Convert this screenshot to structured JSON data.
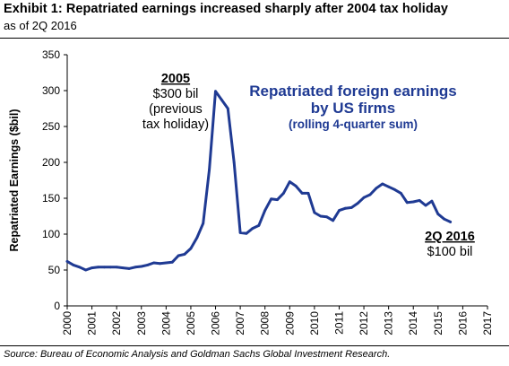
{
  "header": {
    "title": "Exhibit 1: Repatriated earnings increased sharply after 2004 tax holiday",
    "subtitle": "as of 2Q 2016"
  },
  "footer": {
    "source": "Source: Bureau of Economic Analysis and Goldman Sachs Global Investment Research."
  },
  "chart_data": {
    "type": "line",
    "title": "",
    "xlabel": "",
    "ylabel": "Repatriated Earnings ($bil)",
    "xlim": [
      2000,
      2017
    ],
    "ylim": [
      0,
      350
    ],
    "yticks": [
      0,
      50,
      100,
      150,
      200,
      250,
      300,
      350
    ],
    "xticks": [
      "2000",
      "2001",
      "2002",
      "2003",
      "2004",
      "2005",
      "2006",
      "2007",
      "2008",
      "2009",
      "2010",
      "2011",
      "2012",
      "2013",
      "2014",
      "2015",
      "2016",
      "2017"
    ],
    "grid": false,
    "series_color": "#1f3a93",
    "series": [
      {
        "name": "Repatriated foreign earnings by US firms",
        "x": [
          2000.0,
          2000.25,
          2000.5,
          2000.75,
          2001.0,
          2001.25,
          2001.5,
          2001.75,
          2002.0,
          2002.25,
          2002.5,
          2002.75,
          2003.0,
          2003.25,
          2003.5,
          2003.75,
          2004.0,
          2004.25,
          2004.5,
          2004.75,
          2005.0,
          2005.25,
          2005.5,
          2005.75,
          2006.0,
          2006.25,
          2006.5,
          2006.75,
          2007.0,
          2007.25,
          2007.5,
          2007.75,
          2008.0,
          2008.25,
          2008.5,
          2008.75,
          2009.0,
          2009.25,
          2009.5,
          2009.75,
          2010.0,
          2010.25,
          2010.5,
          2010.75,
          2011.0,
          2011.25,
          2011.5,
          2011.75,
          2012.0,
          2012.25,
          2012.5,
          2012.75,
          2013.0,
          2013.25,
          2013.5,
          2013.75,
          2014.0,
          2014.25,
          2014.5,
          2014.75,
          2015.0,
          2015.25,
          2015.5
        ],
        "y": [
          62,
          57,
          54,
          50,
          53,
          54,
          54,
          54,
          54,
          53,
          52,
          54,
          55,
          57,
          60,
          59,
          60,
          61,
          70,
          72,
          80,
          95,
          115,
          190,
          299,
          287,
          275,
          200,
          102,
          101,
          108,
          112,
          133,
          149,
          148,
          157,
          173,
          167,
          157,
          157,
          130,
          125,
          124,
          119,
          133,
          136,
          137,
          143,
          151,
          155,
          164,
          170,
          166,
          162,
          157,
          144,
          145,
          147,
          140,
          146,
          128,
          121,
          117
        ]
      }
    ],
    "annotations": [
      {
        "lines": [
          "2005",
          "$300 bil",
          "(previous",
          "tax holiday)"
        ],
        "first_bold_underlined": true
      },
      {
        "lines": [
          "Repatriated foreign earnings",
          "by US firms",
          "(rolling 4-quarter sum)"
        ],
        "color": "#1f3a93"
      },
      {
        "lines": [
          "2Q 2016",
          "$100 bil"
        ],
        "first_bold_underlined": true
      }
    ]
  }
}
